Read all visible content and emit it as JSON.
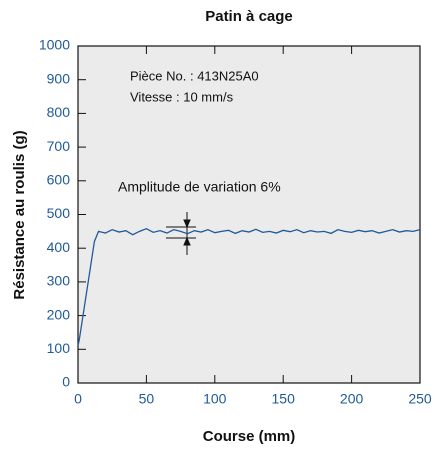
{
  "chart_data": {
    "type": "line",
    "title": "Patin à cage",
    "x_label": "Course (mm)",
    "y_label": "Résistance au roulis (g)",
    "annotations": [
      "Pièce No. : 413N25A0",
      "Vitesse : 10 mm/s",
      "Amplitude de variation 6%"
    ],
    "xlim": [
      0,
      250
    ],
    "xticks": [
      0,
      50,
      100,
      150,
      200,
      250
    ],
    "ylim": [
      0,
      1000
    ],
    "yticks": [
      0,
      100,
      200,
      300,
      400,
      500,
      600,
      700,
      800,
      900,
      1000
    ],
    "x": [
      0,
      1,
      12,
      15,
      20,
      25,
      30,
      35,
      40,
      45,
      50,
      55,
      60,
      65,
      70,
      75,
      80,
      85,
      90,
      95,
      100,
      105,
      110,
      115,
      120,
      125,
      130,
      135,
      140,
      145,
      150,
      155,
      160,
      165,
      170,
      175,
      180,
      185,
      190,
      195,
      200,
      205,
      210,
      215,
      220,
      225,
      230,
      235,
      240,
      245,
      250
    ],
    "series": [
      {
        "name": "Patin à cage",
        "color": "#1f5a99",
        "values": [
          110,
          130,
          420,
          450,
          445,
          455,
          448,
          452,
          440,
          450,
          458,
          447,
          452,
          445,
          455,
          450,
          443,
          452,
          448,
          455,
          446,
          450,
          453,
          444,
          452,
          448,
          456,
          447,
          450,
          445,
          453,
          449,
          455,
          446,
          452,
          448,
          450,
          444,
          455,
          450,
          447,
          453,
          449,
          452,
          445,
          450,
          455,
          448,
          452,
          450,
          455
        ]
      }
    ]
  }
}
